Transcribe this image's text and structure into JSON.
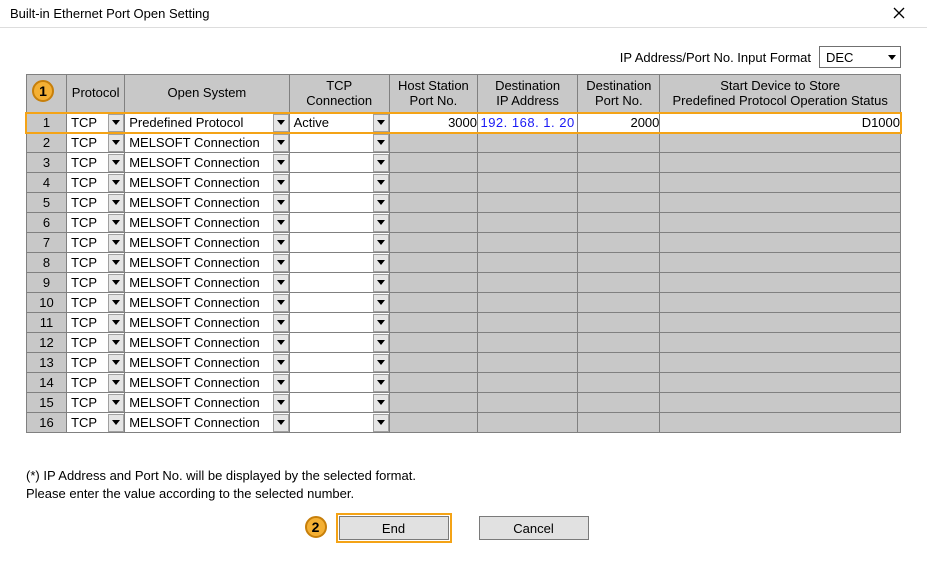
{
  "window": {
    "title": "Built-in Ethernet Port Open Setting"
  },
  "format": {
    "label": "IP Address/Port No. Input Format",
    "value": "DEC"
  },
  "columns": {
    "num": "",
    "protocol": "Protocol",
    "open_system": "Open System",
    "tcp_connection": "TCP Connection",
    "host_port_l1": "Host Station",
    "host_port_l2": "Port No.",
    "dest_ip_l1": "Destination",
    "dest_ip_l2": "IP Address",
    "dest_port_l1": "Destination",
    "dest_port_l2": "Port No.",
    "device_l1": "Start Device to Store",
    "device_l2": "Predefined Protocol Operation Status"
  },
  "rows": [
    {
      "n": "1",
      "protocol": "TCP",
      "open": "Predefined Protocol",
      "tcp": "Active",
      "host": "3000",
      "dip": "192. 168.   1.  20",
      "dpn": "2000",
      "dev": "D1000"
    },
    {
      "n": "2",
      "protocol": "TCP",
      "open": "MELSOFT Connection",
      "tcp": "",
      "host": "",
      "dip": "",
      "dpn": "",
      "dev": ""
    },
    {
      "n": "3",
      "protocol": "TCP",
      "open": "MELSOFT Connection",
      "tcp": "",
      "host": "",
      "dip": "",
      "dpn": "",
      "dev": ""
    },
    {
      "n": "4",
      "protocol": "TCP",
      "open": "MELSOFT Connection",
      "tcp": "",
      "host": "",
      "dip": "",
      "dpn": "",
      "dev": ""
    },
    {
      "n": "5",
      "protocol": "TCP",
      "open": "MELSOFT Connection",
      "tcp": "",
      "host": "",
      "dip": "",
      "dpn": "",
      "dev": ""
    },
    {
      "n": "6",
      "protocol": "TCP",
      "open": "MELSOFT Connection",
      "tcp": "",
      "host": "",
      "dip": "",
      "dpn": "",
      "dev": ""
    },
    {
      "n": "7",
      "protocol": "TCP",
      "open": "MELSOFT Connection",
      "tcp": "",
      "host": "",
      "dip": "",
      "dpn": "",
      "dev": ""
    },
    {
      "n": "8",
      "protocol": "TCP",
      "open": "MELSOFT Connection",
      "tcp": "",
      "host": "",
      "dip": "",
      "dpn": "",
      "dev": ""
    },
    {
      "n": "9",
      "protocol": "TCP",
      "open": "MELSOFT Connection",
      "tcp": "",
      "host": "",
      "dip": "",
      "dpn": "",
      "dev": ""
    },
    {
      "n": "10",
      "protocol": "TCP",
      "open": "MELSOFT Connection",
      "tcp": "",
      "host": "",
      "dip": "",
      "dpn": "",
      "dev": ""
    },
    {
      "n": "11",
      "protocol": "TCP",
      "open": "MELSOFT Connection",
      "tcp": "",
      "host": "",
      "dip": "",
      "dpn": "",
      "dev": ""
    },
    {
      "n": "12",
      "protocol": "TCP",
      "open": "MELSOFT Connection",
      "tcp": "",
      "host": "",
      "dip": "",
      "dpn": "",
      "dev": ""
    },
    {
      "n": "13",
      "protocol": "TCP",
      "open": "MELSOFT Connection",
      "tcp": "",
      "host": "",
      "dip": "",
      "dpn": "",
      "dev": ""
    },
    {
      "n": "14",
      "protocol": "TCP",
      "open": "MELSOFT Connection",
      "tcp": "",
      "host": "",
      "dip": "",
      "dpn": "",
      "dev": ""
    },
    {
      "n": "15",
      "protocol": "TCP",
      "open": "MELSOFT Connection",
      "tcp": "",
      "host": "",
      "dip": "",
      "dpn": "",
      "dev": ""
    },
    {
      "n": "16",
      "protocol": "TCP",
      "open": "MELSOFT Connection",
      "tcp": "",
      "host": "",
      "dip": "",
      "dpn": "",
      "dev": ""
    }
  ],
  "note": {
    "line1": "(*) IP Address and Port No. will be displayed by the selected format.",
    "line2": "Please enter the value according to the selected number."
  },
  "buttons": {
    "end": "End",
    "cancel": "Cancel"
  },
  "annotations": {
    "marker1": "1",
    "marker2": "2"
  },
  "style": {
    "header_bg": "#c8c8c8",
    "grid_border": "#808080",
    "highlight_color": "#f4a316",
    "marker_fill": "#f4b034",
    "marker_border": "#c77f0a",
    "ip_color": "#1a1af5",
    "button_bg": "#e1e1e1"
  }
}
